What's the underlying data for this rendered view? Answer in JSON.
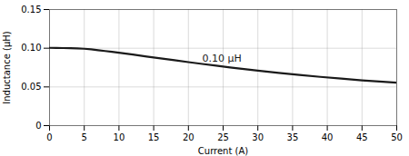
{
  "chart_data": {
    "type": "line",
    "xlabel": "Current (A)",
    "ylabel": "Inductance (μH)",
    "x": [
      0,
      1,
      2,
      3,
      4,
      5,
      6,
      7,
      8,
      9,
      10,
      12,
      14,
      16,
      18,
      20,
      22,
      24,
      26,
      28,
      30,
      33,
      36,
      39,
      42,
      45,
      48,
      50
    ],
    "values": [
      0.1005,
      0.1003,
      0.1002,
      0.1,
      0.0998,
      0.0993,
      0.0985,
      0.0975,
      0.0964,
      0.0953,
      0.0942,
      0.0918,
      0.0893,
      0.0869,
      0.0845,
      0.082,
      0.0797,
      0.0774,
      0.0752,
      0.0731,
      0.0711,
      0.0682,
      0.0655,
      0.063,
      0.0607,
      0.0585,
      0.0566,
      0.0555
    ],
    "color": "#1a1a1a",
    "xlim": [
      0,
      50
    ],
    "ylim": [
      0,
      0.15
    ],
    "xticks": [
      0,
      5,
      10,
      15,
      20,
      25,
      30,
      35,
      40,
      45,
      50
    ],
    "yticks": [
      0,
      0.05,
      {
        "value": 0.1,
        "label": "0.10"
      },
      0.15
    ],
    "grid": true,
    "annotations": [
      {
        "text": "0.10 μH",
        "x": 22,
        "y": 0.083
      }
    ]
  }
}
